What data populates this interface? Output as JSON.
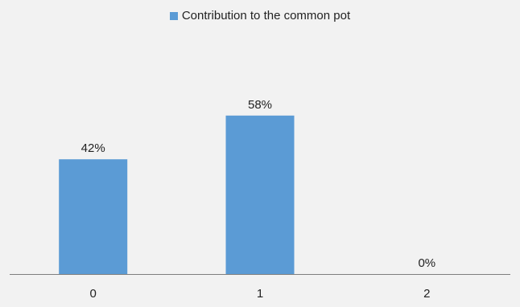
{
  "chart_data": {
    "type": "bar",
    "categories": [
      "0",
      "1",
      "2"
    ],
    "series": [
      {
        "name": "Contribution to the common pot",
        "values": [
          42,
          58,
          0
        ],
        "data_labels": [
          "42%",
          "58%",
          "0%"
        ],
        "color": "#5b9bd5"
      }
    ],
    "ylim": [
      0,
      100
    ],
    "grid": false,
    "legend_position": "top-center",
    "axis_color": "#7f7f7f"
  }
}
